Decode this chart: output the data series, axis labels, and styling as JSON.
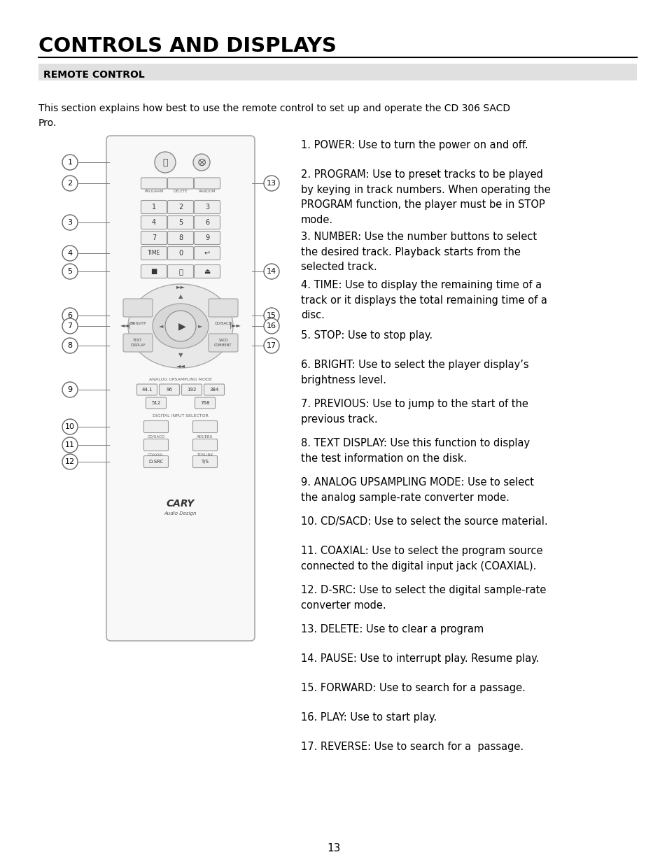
{
  "title": "CONTROLS AND DISPLAYS",
  "section_header": "REMOTE CONTROL",
  "intro_text": "This section explains how best to use the remote control to set up and operate the CD 306 SACD\nPro.",
  "descriptions": [
    "1. POWER: Use to turn the power on and off.",
    "2. PROGRAM: Use to preset tracks to be played\nby keying in track numbers. When operating the\nPROGRAM function, the player must be in STOP\nmode.",
    "3. NUMBER: Use the number buttons to select\nthe desired track. Playback starts from the\nselected track.",
    "4. TIME: Use to display the remaining time of a\ntrack or it displays the total remaining time of a\ndisc.",
    "5. STOP: Use to stop play.",
    "6. BRIGHT: Use to select the player display’s\nbrightness level.",
    "7. PREVIOUS: Use to jump to the start of the\nprevious track.",
    "8. TEXT DISPLAY: Use this function to display\nthe test information on the disk.",
    "9. ANALOG UPSAMPLING MODE: Use to select\nthe analog sample-rate converter mode.",
    "10. CD/SACD: Use to select the source material.",
    "11. COAXIAL: Use to select the program source\nconnected to the digital input jack (COAXIAL).",
    "12. D-SRC: Use to select the digital sample-rate\nconverter mode.",
    "13. DELETE: Use to clear a program",
    "14. PAUSE: Use to interrupt play. Resume play.",
    "15. FORWARD: Use to search for a passage.",
    "16. PLAY: Use to start play.",
    "17. REVERSE: Use to search for a  passage."
  ],
  "page_number": "13",
  "bg_color": "#ffffff",
  "title_color": "#000000",
  "section_bg": "#e0e0e0",
  "text_color": "#000000"
}
